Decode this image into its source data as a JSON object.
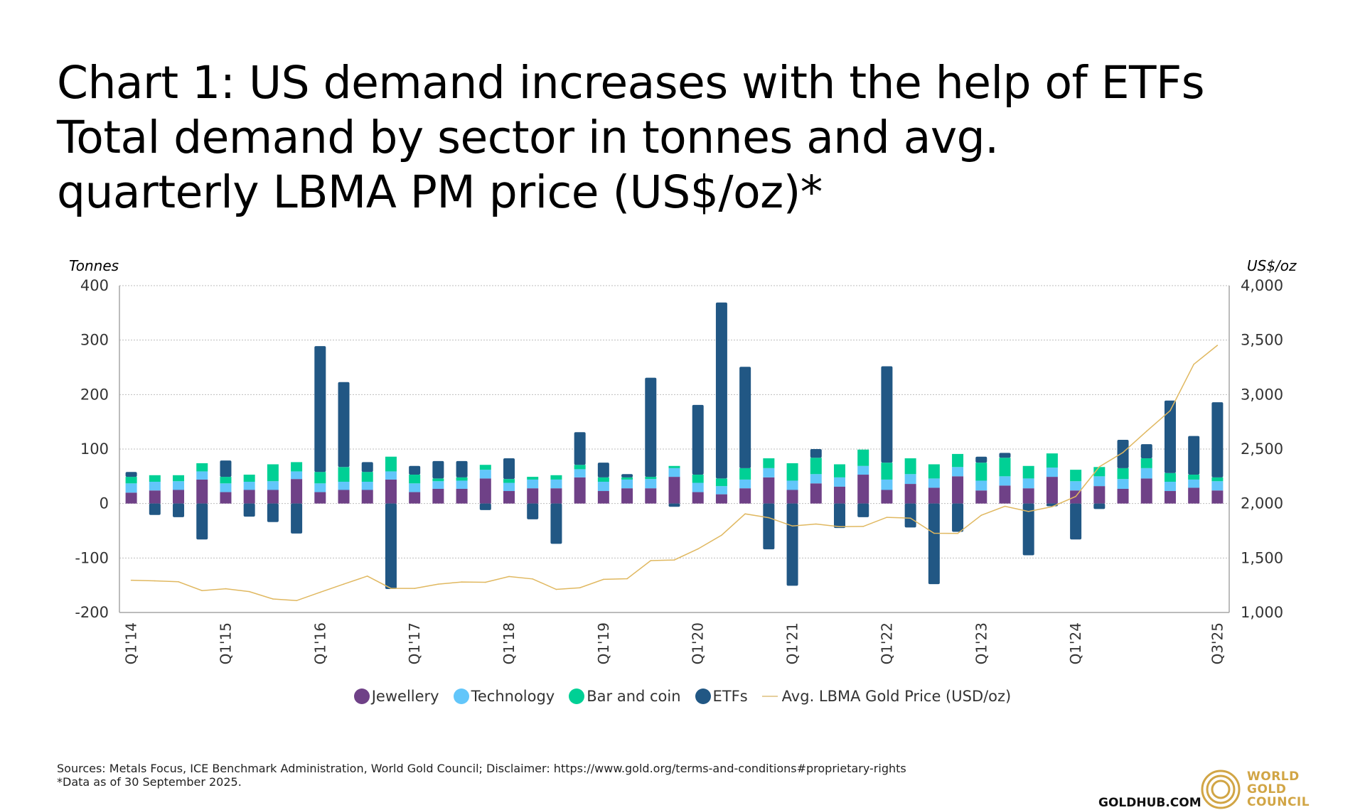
{
  "title": "Chart 1: US demand increases with the help of ETFs Total demand by sector in tonnes and avg. quarterly LBMA PM price (US$/oz)*",
  "sources": "Sources: Metals Focus, ICE Benchmark Administration, World Gold Council; Disclaimer: https://www.gold.org/terms-and-conditions#proprietary-rights",
  "footnote": "*Data as of 30 September 2025.",
  "brand": {
    "site": "GOLDHUB.COM",
    "logo_lines": [
      "WORLD",
      "GOLD",
      "COUNCIL"
    ],
    "logo_icon": "concentric-rings-icon",
    "logo_color": "#d1a545"
  },
  "chart_data": {
    "type": "bar",
    "stacked": true,
    "title": "Chart 1: US demand increases with the help of ETFs Total demand by sector in tonnes and avg. quarterly LBMA PM price (US$/oz)*",
    "ylabel": "Tonnes",
    "y2label": "US$/oz",
    "ylim": [
      -200,
      400
    ],
    "y2lim": [
      1000,
      4000
    ],
    "yticks": [
      "400",
      "300",
      "200",
      "100",
      "0",
      "-100",
      "-200"
    ],
    "ytick_values": [
      400,
      300,
      200,
      100,
      0,
      -100,
      -200
    ],
    "y2ticks": [
      "4,000",
      "3,500",
      "3,000",
      "2,500",
      "2,000",
      "1,500",
      "1,000"
    ],
    "y2tick_values": [
      4000,
      3500,
      3000,
      2500,
      2000,
      1500,
      1000
    ],
    "grid": true,
    "legend_position": "bottom",
    "categories": [
      "Q1'14",
      "Q2'14",
      "Q3'14",
      "Q4'14",
      "Q1'15",
      "Q2'15",
      "Q3'15",
      "Q4'15",
      "Q1'16",
      "Q2'16",
      "Q3'16",
      "Q4'16",
      "Q1'17",
      "Q2'17",
      "Q3'17",
      "Q4'17",
      "Q1'18",
      "Q2'18",
      "Q3'18",
      "Q4'18",
      "Q1'19",
      "Q2'19",
      "Q3'19",
      "Q4'19",
      "Q1'20",
      "Q2'20",
      "Q3'20",
      "Q4'20",
      "Q1'21",
      "Q2'21",
      "Q3'21",
      "Q4'21",
      "Q1'22",
      "Q2'22",
      "Q3'22",
      "Q4'22",
      "Q1'23",
      "Q2'23",
      "Q3'23",
      "Q4'23",
      "Q1'24",
      "Q2'24",
      "Q3'24",
      "Q4'24",
      "Q1'25",
      "Q2'25",
      "Q3'25"
    ],
    "xtick_labels": [
      {
        "index": 0,
        "label": "Q1'14"
      },
      {
        "index": 4,
        "label": "Q1'15"
      },
      {
        "index": 8,
        "label": "Q1'16"
      },
      {
        "index": 12,
        "label": "Q1'17"
      },
      {
        "index": 16,
        "label": "Q1'18"
      },
      {
        "index": 20,
        "label": "Q1'19"
      },
      {
        "index": 24,
        "label": "Q1'20"
      },
      {
        "index": 28,
        "label": "Q1'21"
      },
      {
        "index": 32,
        "label": "Q1'22"
      },
      {
        "index": 36,
        "label": "Q1'23"
      },
      {
        "index": 40,
        "label": "Q1'24"
      },
      {
        "index": 46,
        "label": "Q3'25"
      }
    ],
    "series": [
      {
        "name": "Jewellery",
        "color": "#6f4187",
        "kind": "bar",
        "values": [
          20,
          24,
          25,
          44,
          21,
          25,
          25,
          45,
          21,
          25,
          25,
          44,
          21,
          27,
          27,
          46,
          23,
          28,
          28,
          48,
          23,
          28,
          28,
          49,
          21,
          17,
          28,
          48,
          25,
          37,
          31,
          53,
          25,
          36,
          29,
          50,
          24,
          33,
          28,
          49,
          24,
          32,
          27,
          46,
          23,
          29,
          24
        ]
      },
      {
        "name": "Technology",
        "color": "#62c6fa",
        "kind": "bar",
        "values": [
          17,
          16,
          16,
          15,
          16,
          15,
          16,
          14,
          16,
          15,
          15,
          15,
          16,
          14,
          15,
          16,
          15,
          16,
          16,
          15,
          17,
          16,
          17,
          16,
          17,
          15,
          16,
          17,
          17,
          17,
          17,
          16,
          19,
          18,
          17,
          17,
          18,
          17,
          18,
          17,
          17,
          18,
          18,
          19,
          17,
          15,
          17
        ]
      },
      {
        "name": "Bar and coin",
        "color": "#00d095",
        "kind": "bar",
        "values": [
          12,
          12,
          11,
          15,
          12,
          13,
          31,
          17,
          21,
          27,
          18,
          27,
          16,
          5,
          6,
          9,
          7,
          5,
          8,
          8,
          8,
          4,
          4,
          4,
          15,
          14,
          21,
          18,
          32,
          30,
          24,
          30,
          31,
          29,
          26,
          24,
          33,
          34,
          23,
          26,
          21,
          17,
          20,
          18,
          16,
          9,
          7
        ]
      },
      {
        "name": "ETFs",
        "color": "#215784",
        "kind": "bar",
        "values": [
          9,
          -21,
          -25,
          -66,
          30,
          -24,
          -34,
          -55,
          231,
          156,
          18,
          -157,
          16,
          32,
          30,
          -12,
          38,
          -29,
          -74,
          60,
          27,
          6,
          182,
          -6,
          128,
          323,
          186,
          -84,
          -151,
          16,
          -45,
          -25,
          177,
          -44,
          -148,
          -52,
          11,
          9,
          -95,
          -5,
          -66,
          -10,
          52,
          26,
          133,
          71,
          138
        ]
      },
      {
        "name": "Avg. LBMA Gold Price (USD/oz)",
        "color": "#e0b860",
        "kind": "line",
        "axis": "right",
        "values": [
          1296,
          1290,
          1282,
          1201,
          1218,
          1192,
          1124,
          1109,
          1185,
          1260,
          1334,
          1221,
          1221,
          1260,
          1280,
          1277,
          1330,
          1308,
          1212,
          1227,
          1304,
          1310,
          1476,
          1482,
          1583,
          1709,
          1905,
          1870,
          1794,
          1812,
          1788,
          1790,
          1873,
          1866,
          1727,
          1725,
          1892,
          1975,
          1927,
          1971,
          2065,
          2337,
          2468,
          2664,
          2853,
          3278,
          3452
        ]
      }
    ]
  },
  "legend": [
    {
      "label": "Jewellery",
      "color": "#6f4187",
      "shape": "circle"
    },
    {
      "label": "Technology",
      "color": "#62c6fa",
      "shape": "circle"
    },
    {
      "label": "Bar and coin",
      "color": "#00d095",
      "shape": "circle"
    },
    {
      "label": "ETFs",
      "color": "#215784",
      "shape": "circle"
    },
    {
      "label": "Avg. LBMA Gold Price (USD/oz)",
      "color": "#e6cf9c",
      "shape": "line"
    }
  ]
}
